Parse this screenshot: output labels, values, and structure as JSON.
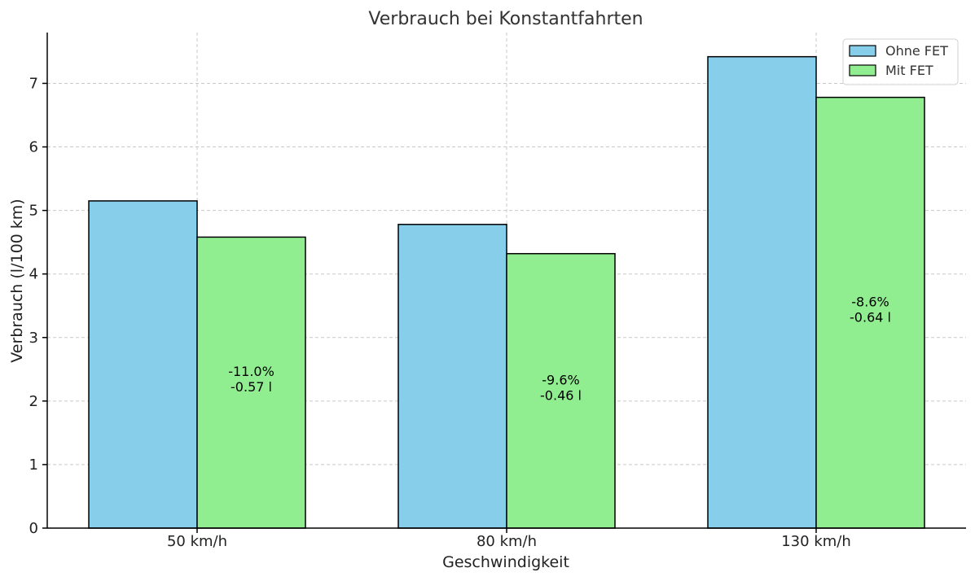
{
  "chart_data": {
    "type": "bar",
    "title": "Verbrauch bei Konstantfahrten",
    "xlabel": "Geschwindigkeit",
    "ylabel": "Verbrauch (l/100 km)",
    "categories": [
      "50 km/h",
      "80 km/h",
      "130 km/h"
    ],
    "series": [
      {
        "name": "Ohne FET",
        "color": "#87ceeb",
        "values": [
          5.15,
          4.78,
          7.42
        ]
      },
      {
        "name": "Mit FET",
        "color": "#90ee90",
        "values": [
          4.58,
          4.32,
          6.78
        ]
      }
    ],
    "annotations": [
      {
        "category": "50 km/h",
        "series": "Mit FET",
        "lines": [
          "-11.0%",
          "-0.57 l"
        ]
      },
      {
        "category": "80 km/h",
        "series": "Mit FET",
        "lines": [
          "-9.6%",
          "-0.46 l"
        ]
      },
      {
        "category": "130 km/h",
        "series": "Mit FET",
        "lines": [
          "-8.6%",
          "-0.64 l"
        ]
      }
    ],
    "ylim": [
      0,
      7.8
    ],
    "yticks": [
      0,
      1,
      2,
      3,
      4,
      5,
      6,
      7
    ],
    "grid": true,
    "legend_position": "top-right"
  }
}
